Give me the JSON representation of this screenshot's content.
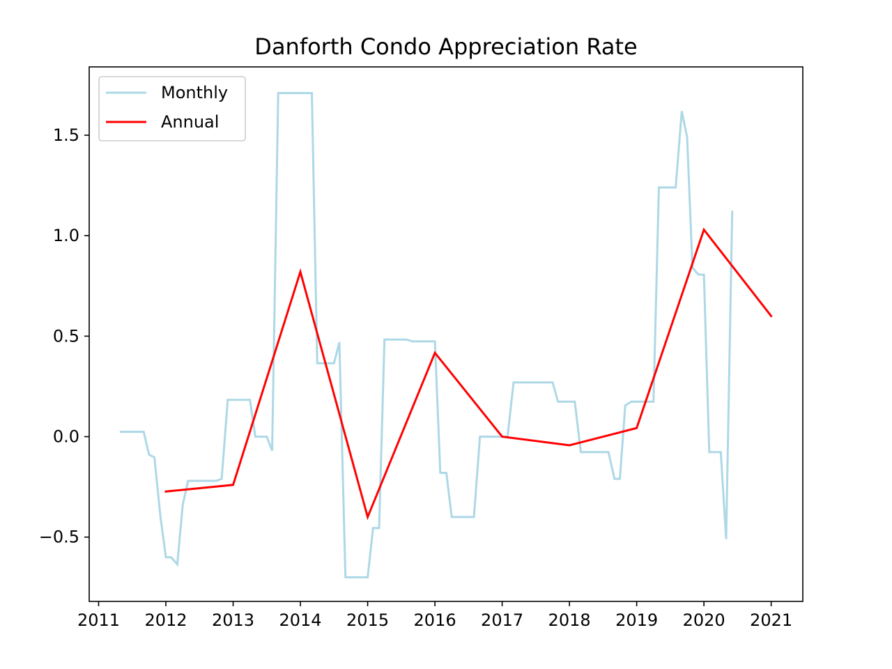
{
  "chart_data": {
    "type": "line",
    "title": "Danforth Condo Appreciation Rate",
    "xlabel": "",
    "ylabel": "",
    "xlim": [
      2010.86,
      2021.47
    ],
    "ylim": [
      -0.82,
      1.84
    ],
    "x_ticks": [
      2011,
      2012,
      2013,
      2014,
      2015,
      2016,
      2017,
      2018,
      2019,
      2020,
      2021
    ],
    "x_tick_labels": [
      "2011",
      "2012",
      "2013",
      "2014",
      "2015",
      "2016",
      "2017",
      "2018",
      "2019",
      "2020",
      "2021"
    ],
    "y_ticks": [
      -0.5,
      0.0,
      0.5,
      1.0,
      1.5
    ],
    "y_tick_labels": [
      "−0.5",
      "0.0",
      "0.5",
      "1.0",
      "1.5"
    ],
    "grid": false,
    "legend_position": "top-left",
    "series": [
      {
        "name": "Monthly",
        "color": "#add8e6",
        "points": [
          [
            2011.33,
            0.024
          ],
          [
            2011.42,
            0.024
          ],
          [
            2011.5,
            0.024
          ],
          [
            2011.58,
            0.024
          ],
          [
            2011.67,
            0.024
          ],
          [
            2011.75,
            -0.09
          ],
          [
            2011.83,
            -0.103
          ],
          [
            2011.92,
            -0.4
          ],
          [
            2012.0,
            -0.6
          ],
          [
            2012.08,
            -0.6
          ],
          [
            2012.17,
            -0.636
          ],
          [
            2012.25,
            -0.34
          ],
          [
            2012.33,
            -0.22
          ],
          [
            2012.42,
            -0.22
          ],
          [
            2012.5,
            -0.22
          ],
          [
            2012.58,
            -0.22
          ],
          [
            2012.67,
            -0.22
          ],
          [
            2012.75,
            -0.22
          ],
          [
            2012.83,
            -0.21
          ],
          [
            2012.92,
            0.183
          ],
          [
            2013.0,
            0.183
          ],
          [
            2013.08,
            0.183
          ],
          [
            2013.17,
            0.183
          ],
          [
            2013.25,
            0.183
          ],
          [
            2013.33,
            0.0
          ],
          [
            2013.42,
            0.0
          ],
          [
            2013.5,
            0.0
          ],
          [
            2013.58,
            -0.07
          ],
          [
            2013.67,
            1.71
          ],
          [
            2013.75,
            1.71
          ],
          [
            2013.83,
            1.71
          ],
          [
            2013.92,
            1.71
          ],
          [
            2014.0,
            1.71
          ],
          [
            2014.08,
            1.71
          ],
          [
            2014.17,
            1.71
          ],
          [
            2014.25,
            0.365
          ],
          [
            2014.33,
            0.365
          ],
          [
            2014.42,
            0.365
          ],
          [
            2014.5,
            0.365
          ],
          [
            2014.58,
            0.47
          ],
          [
            2014.67,
            -0.7
          ],
          [
            2014.75,
            -0.7
          ],
          [
            2014.83,
            -0.7
          ],
          [
            2014.92,
            -0.7
          ],
          [
            2015.0,
            -0.7
          ],
          [
            2015.08,
            -0.455
          ],
          [
            2015.17,
            -0.455
          ],
          [
            2015.25,
            0.483
          ],
          [
            2015.33,
            0.483
          ],
          [
            2015.42,
            0.483
          ],
          [
            2015.5,
            0.483
          ],
          [
            2015.58,
            0.483
          ],
          [
            2015.67,
            0.474
          ],
          [
            2015.75,
            0.474
          ],
          [
            2015.83,
            0.474
          ],
          [
            2015.92,
            0.474
          ],
          [
            2016.0,
            0.474
          ],
          [
            2016.08,
            -0.18
          ],
          [
            2016.17,
            -0.18
          ],
          [
            2016.25,
            -0.4
          ],
          [
            2016.33,
            -0.4
          ],
          [
            2016.42,
            -0.4
          ],
          [
            2016.5,
            -0.4
          ],
          [
            2016.58,
            -0.4
          ],
          [
            2016.67,
            0.0
          ],
          [
            2016.75,
            0.0
          ],
          [
            2016.83,
            0.0
          ],
          [
            2016.92,
            0.0
          ],
          [
            2017.0,
            0.0
          ],
          [
            2017.08,
            0.0
          ],
          [
            2017.17,
            0.27
          ],
          [
            2017.25,
            0.27
          ],
          [
            2017.33,
            0.27
          ],
          [
            2017.42,
            0.27
          ],
          [
            2017.5,
            0.27
          ],
          [
            2017.58,
            0.27
          ],
          [
            2017.67,
            0.27
          ],
          [
            2017.75,
            0.27
          ],
          [
            2017.83,
            0.174
          ],
          [
            2017.92,
            0.174
          ],
          [
            2018.0,
            0.174
          ],
          [
            2018.08,
            0.174
          ],
          [
            2018.17,
            -0.077
          ],
          [
            2018.25,
            -0.077
          ],
          [
            2018.33,
            -0.077
          ],
          [
            2018.42,
            -0.077
          ],
          [
            2018.5,
            -0.077
          ],
          [
            2018.58,
            -0.077
          ],
          [
            2018.67,
            -0.21
          ],
          [
            2018.75,
            -0.21
          ],
          [
            2018.83,
            0.155
          ],
          [
            2018.92,
            0.174
          ],
          [
            2019.0,
            0.174
          ],
          [
            2019.08,
            0.174
          ],
          [
            2019.17,
            0.174
          ],
          [
            2019.25,
            0.174
          ],
          [
            2019.33,
            1.24
          ],
          [
            2019.42,
            1.24
          ],
          [
            2019.5,
            1.24
          ],
          [
            2019.58,
            1.24
          ],
          [
            2019.67,
            1.62
          ],
          [
            2019.75,
            1.49
          ],
          [
            2019.83,
            0.84
          ],
          [
            2019.92,
            0.806
          ],
          [
            2020.0,
            0.806
          ],
          [
            2020.08,
            -0.077
          ],
          [
            2020.17,
            -0.077
          ],
          [
            2020.25,
            -0.077
          ],
          [
            2020.33,
            -0.51
          ],
          [
            2020.42,
            1.12
          ]
        ]
      },
      {
        "name": "Annual",
        "color": "#ff0000",
        "points": [
          [
            2012,
            -0.273
          ],
          [
            2013,
            -0.24
          ],
          [
            2014,
            0.82
          ],
          [
            2015,
            -0.4
          ],
          [
            2016,
            0.417
          ],
          [
            2017,
            0.0
          ],
          [
            2018,
            -0.043
          ],
          [
            2019,
            0.043
          ],
          [
            2020,
            1.03
          ],
          [
            2021,
            0.6
          ]
        ]
      }
    ]
  }
}
